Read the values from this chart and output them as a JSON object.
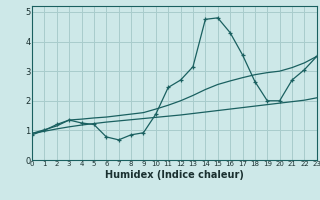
{
  "title": "",
  "xlabel": "Humidex (Indice chaleur)",
  "ylabel": "",
  "bg_color": "#cde8e8",
  "line_color": "#1a6060",
  "grid_color": "#a8cccc",
  "x_values": [
    0,
    1,
    2,
    3,
    4,
    5,
    6,
    7,
    8,
    9,
    10,
    11,
    12,
    13,
    14,
    15,
    16,
    17,
    18,
    19,
    20,
    21,
    22,
    23
  ],
  "y_main": [
    0.85,
    1.0,
    1.2,
    1.35,
    1.25,
    1.2,
    0.78,
    0.68,
    0.85,
    0.92,
    1.55,
    2.45,
    2.7,
    3.15,
    4.75,
    4.8,
    4.3,
    3.55,
    2.65,
    2.0,
    2.0,
    2.7,
    3.05,
    3.5
  ],
  "y_lower": [
    0.9,
    0.97,
    1.05,
    1.12,
    1.18,
    1.23,
    1.28,
    1.32,
    1.36,
    1.4,
    1.44,
    1.48,
    1.52,
    1.57,
    1.62,
    1.67,
    1.72,
    1.77,
    1.82,
    1.87,
    1.92,
    1.97,
    2.02,
    2.1
  ],
  "y_upper": [
    0.9,
    1.02,
    1.15,
    1.35,
    1.38,
    1.42,
    1.45,
    1.5,
    1.55,
    1.6,
    1.72,
    1.85,
    2.0,
    2.18,
    2.38,
    2.55,
    2.67,
    2.78,
    2.88,
    2.95,
    3.0,
    3.12,
    3.28,
    3.5
  ],
  "xlim": [
    0,
    23
  ],
  "ylim": [
    0,
    5.2
  ],
  "yticks": [
    0,
    1,
    2,
    3,
    4,
    5
  ],
  "xticks": [
    0,
    1,
    2,
    3,
    4,
    5,
    6,
    7,
    8,
    9,
    10,
    11,
    12,
    13,
    14,
    15,
    16,
    17,
    18,
    19,
    20,
    21,
    22,
    23
  ]
}
